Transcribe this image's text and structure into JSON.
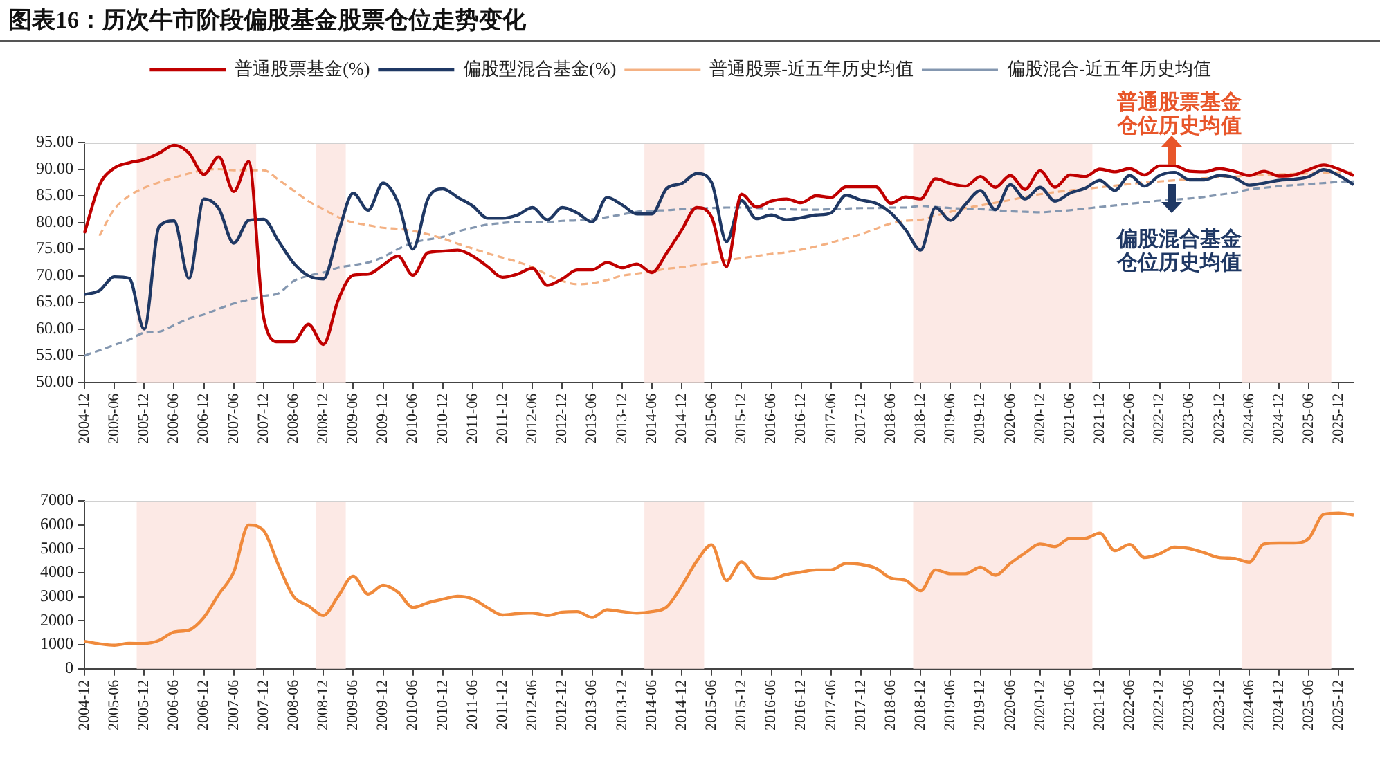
{
  "chart_data": [
    {
      "type": "line",
      "title": "图表16：历次牛市阶段偏股基金股票仓位走势变化",
      "categories": [
        "2004-12",
        null,
        "2005-06",
        null,
        "2005-12",
        null,
        "2006-06",
        null,
        "2006-12",
        null,
        "2007-06",
        null,
        "2007-12",
        null,
        "2008-06",
        null,
        "2008-12",
        null,
        "2009-06",
        null,
        "2009-12",
        null,
        "2010-06",
        null,
        "2010-12",
        null,
        "2011-06",
        null,
        "2011-12",
        null,
        "2012-06",
        null,
        "2012-12",
        null,
        "2013-06",
        null,
        "2013-12",
        null,
        "2014-06",
        null,
        "2014-12",
        null,
        "2015-06",
        null,
        "2015-12",
        null,
        "2016-06",
        null,
        "2016-12",
        null,
        "2017-06",
        null,
        "2017-12",
        null,
        "2018-06",
        null,
        "2018-12",
        null,
        "2019-06",
        null,
        "2019-12",
        null,
        "2020-06",
        null,
        "2020-12",
        null,
        "2021-06",
        null,
        "2021-12",
        null,
        "2022-06",
        null,
        "2022-12",
        null,
        "2023-06",
        null,
        "2023-12",
        null,
        "2024-06",
        null,
        "2024-12",
        null,
        "2025-06",
        null,
        "2025-12",
        null
      ],
      "series": [
        {
          "name": "普通股票基金(%)",
          "color": "#c00000",
          "values": [
            78,
            87,
            90.2,
            91.2,
            91.8,
            93,
            94.5,
            93,
            89,
            92.3,
            85.8,
            91.4,
            62.2,
            57.6,
            57.6,
            60.9,
            57.1,
            65.5,
            70.1,
            70.3,
            72,
            73.7,
            70.1,
            74.3,
            74.6,
            74.8,
            73.7,
            71.7,
            69.7,
            70.3,
            71.4,
            68.2,
            69.4,
            71.1,
            71.1,
            72.5,
            71.5,
            72.2,
            70.6,
            74.3,
            78.6,
            82.8,
            81,
            71.7,
            85.3,
            82.9,
            84,
            84.4,
            83.7,
            85,
            84.7,
            86.7,
            86.7,
            86.7,
            83.6,
            84.8,
            84.4,
            88.2,
            87.3,
            86.8,
            88.6,
            86.6,
            88.8,
            86.2,
            89.7,
            86.6,
            88.9,
            88.6,
            90,
            89.5,
            90.1,
            88.9,
            90.6,
            90.6,
            89.6,
            89.5,
            90.1,
            89.6,
            88.8,
            89.6,
            88.7,
            88.9,
            89.9,
            90.8,
            90,
            88.8
          ]
        },
        {
          "name": "偏股型混合基金(%)",
          "color": "#1f3864",
          "values": [
            66.5,
            67.2,
            69.8,
            69.5,
            60,
            79.2,
            80.3,
            69.5,
            84.4,
            82.6,
            76.1,
            80.4,
            80.6,
            76.5,
            72.4,
            70,
            69.4,
            78,
            85.5,
            82.3,
            87.4,
            83.8,
            75,
            84.4,
            86.3,
            84.7,
            83.1,
            80.8,
            80.8,
            81.4,
            82.8,
            80.5,
            82.8,
            81.8,
            80.1,
            84.7,
            83.3,
            81.6,
            81.6,
            86.4,
            87.3,
            89.2,
            87.5,
            76.4,
            84.1,
            80.7,
            81.4,
            80.5,
            80.9,
            81.4,
            81.8,
            85.1,
            84.2,
            83.6,
            81.8,
            78.6,
            74.8,
            82.8,
            80.4,
            83.4,
            86,
            82.4,
            87.1,
            84.4,
            86.6,
            84,
            85.5,
            86.4,
            87.9,
            86,
            88.8,
            86.8,
            88.8,
            89.4,
            88,
            88,
            88.8,
            88.4,
            87,
            87.4,
            87.9,
            88.1,
            88.6,
            89.9,
            88.8,
            87.1
          ]
        },
        {
          "name": "普通股票-近五年历史均值",
          "color": "#f4b183",
          "line_style": "dashed",
          "values": [
            null,
            77.5,
            82.5,
            85,
            86.5,
            87.5,
            88.4,
            89.2,
            89.8,
            90,
            89.8,
            89.8,
            89.8,
            88,
            86,
            84,
            82.5,
            81,
            80,
            79.5,
            79,
            78.8,
            78.4,
            77.8,
            77,
            76,
            75.1,
            74.2,
            73.4,
            72.6,
            71.6,
            70.2,
            69,
            68.4,
            68.6,
            69.2,
            70,
            70.4,
            70.8,
            71.3,
            71.6,
            72,
            72.4,
            72.9,
            73.3,
            73.7,
            74.1,
            74.4,
            74.9,
            75.5,
            76.2,
            77,
            77.8,
            78.8,
            79.8,
            80.3,
            80.5,
            81.3,
            82,
            82.7,
            83.2,
            83.7,
            84.2,
            84.8,
            85.3,
            85.7,
            86,
            86.3,
            86.6,
            86.9,
            87.2,
            87.5,
            87.7,
            87.9,
            88.1,
            88.3,
            88.5,
            88.6,
            88.8,
            88.9,
            89,
            89.1,
            89.2,
            89.3,
            89.4,
            89.4
          ]
        },
        {
          "name": "偏股混合-近五年历史均值",
          "color": "#8497b0",
          "line_style": "dashed",
          "values": [
            55,
            56,
            57,
            58,
            59.3,
            59.5,
            60.7,
            62,
            62.7,
            63.8,
            64.8,
            65.5,
            66.2,
            66.7,
            69,
            70,
            70.6,
            71.5,
            72,
            72.5,
            73.5,
            75,
            76.2,
            76.8,
            77.3,
            78.3,
            79,
            79.6,
            79.9,
            80.1,
            80.1,
            80.1,
            80.3,
            80.4,
            80.6,
            81,
            81.5,
            82,
            82.2,
            82.3,
            82.5,
            82.6,
            82.7,
            82.8,
            82.8,
            82.7,
            82.6,
            82.5,
            82.4,
            82.4,
            82.5,
            82.6,
            82.7,
            82.7,
            82.8,
            82.8,
            83.1,
            82.9,
            82.7,
            82.6,
            82.5,
            82.3,
            82.1,
            82,
            81.9,
            82.1,
            82.3,
            82.6,
            82.9,
            83.2,
            83.5,
            83.8,
            84.1,
            84.3,
            84.5,
            84.8,
            85.2,
            85.6,
            86.2,
            86.5,
            86.8,
            87,
            87.2,
            87.4,
            87.6,
            87.7
          ]
        }
      ],
      "ylim": [
        50,
        95
      ],
      "yticks": [
        {
          "value": 50,
          "label": "50.00"
        },
        {
          "value": 55,
          "label": "55.00"
        },
        {
          "value": 60,
          "label": "60.00"
        },
        {
          "value": 65,
          "label": "65.00"
        },
        {
          "value": 70,
          "label": "70.00"
        },
        {
          "value": 75,
          "label": "75.00"
        },
        {
          "value": 80,
          "label": "80.00"
        },
        {
          "value": 85,
          "label": "85.00"
        },
        {
          "value": 90,
          "label": "90.00"
        },
        {
          "value": 95,
          "label": "95.00"
        }
      ],
      "bands": [
        {
          "axis": "x",
          "from": "2005-12",
          "to": "2007-12",
          "color": "#fce9e5"
        },
        {
          "axis": "x",
          "from": "2008-12",
          "to": "2009-06",
          "color": "#fce9e5"
        },
        {
          "axis": "x",
          "from": "2014-06",
          "to": "2015-06",
          "color": "#fce9e5"
        },
        {
          "axis": "x",
          "from": "2018-12",
          "to": "2021-12",
          "color": "#fce9e5"
        },
        {
          "axis": "x",
          "from": "2024-06",
          "to": "2025-12",
          "color": "#fce9e5"
        }
      ],
      "annotations": [
        "普通股票基金仓位历史均值",
        "偏股混合基金仓位历史均值"
      ],
      "legend": "top",
      "grid": false,
      "marker": "none"
    },
    {
      "type": "line",
      "categories": [
        "2004-12",
        null,
        "2005-06",
        null,
        "2005-12",
        null,
        "2006-06",
        null,
        "2006-12",
        null,
        "2007-06",
        null,
        "2007-12",
        null,
        "2008-06",
        null,
        "2008-12",
        null,
        "2009-06",
        null,
        "2009-12",
        null,
        "2010-06",
        null,
        "2010-12",
        null,
        "2011-06",
        null,
        "2011-12",
        null,
        "2012-06",
        null,
        "2012-12",
        null,
        "2013-06",
        null,
        "2013-12",
        null,
        "2014-06",
        null,
        "2014-12",
        null,
        "2015-06",
        null,
        "2015-12",
        null,
        "2016-06",
        null,
        "2016-12",
        null,
        "2017-06",
        null,
        "2017-12",
        null,
        "2018-06",
        null,
        "2018-12",
        null,
        "2019-06",
        null,
        "2019-12",
        null,
        "2020-06",
        null,
        "2020-12",
        null,
        "2021-06",
        null,
        "2021-12",
        null,
        "2022-06",
        null,
        "2022-12",
        null,
        "2023-06",
        null,
        "2023-12",
        null,
        "2024-06",
        null,
        "2024-12",
        null,
        "2025-06",
        null,
        "2025-12",
        null
      ],
      "series": [
        {
          "color": "#f08a3c",
          "values": [
            1140,
            1040,
            980,
            1060,
            1050,
            1180,
            1530,
            1610,
            2140,
            3110,
            4030,
            5990,
            5760,
            4310,
            3020,
            2620,
            2220,
            3030,
            3860,
            3110,
            3480,
            3190,
            2550,
            2750,
            2900,
            3020,
            2910,
            2540,
            2240,
            2300,
            2320,
            2220,
            2360,
            2380,
            2140,
            2460,
            2380,
            2320,
            2380,
            2580,
            3450,
            4480,
            5160,
            3680,
            4450,
            3800,
            3750,
            3930,
            4030,
            4120,
            4120,
            4390,
            4350,
            4190,
            3780,
            3680,
            3250,
            4120,
            3960,
            3960,
            4230,
            3900,
            4390,
            4830,
            5200,
            5090,
            5440,
            5440,
            5650,
            4920,
            5180,
            4630,
            4790,
            5070,
            5010,
            4830,
            4630,
            4600,
            4440,
            5200,
            5240,
            5240,
            5440,
            6440,
            6490,
            6410
          ]
        }
      ],
      "ylim": [
        0,
        7000
      ],
      "yticks": [
        0,
        1000,
        2000,
        3000,
        4000,
        5000,
        6000,
        7000
      ],
      "bands": [
        {
          "axis": "x",
          "from": "2005-12",
          "to": "2007-12",
          "color": "#fce9e5"
        },
        {
          "axis": "x",
          "from": "2008-12",
          "to": "2009-06",
          "color": "#fce9e5"
        },
        {
          "axis": "x",
          "from": "2014-06",
          "to": "2015-06",
          "color": "#fce9e5"
        },
        {
          "axis": "x",
          "from": "2018-12",
          "to": "2021-12",
          "color": "#fce9e5"
        },
        {
          "axis": "x",
          "from": "2024-06",
          "to": "2025-12",
          "color": "#fce9e5"
        }
      ],
      "legend": false,
      "grid": false,
      "marker": "none"
    }
  ]
}
